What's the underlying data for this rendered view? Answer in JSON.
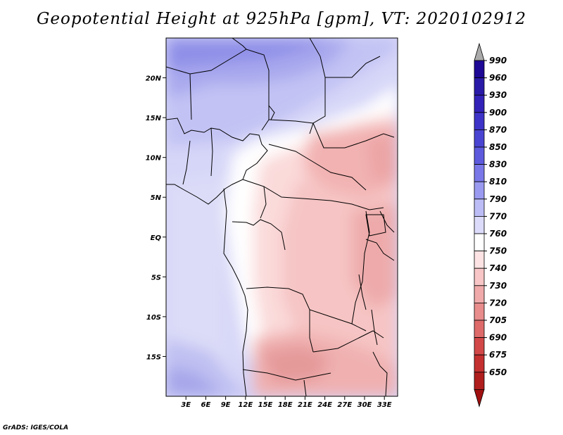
{
  "title": "Geopotential Height at 925hPa [gpm], VT: 2020102912",
  "footer": "GrADS: IGES/COLA",
  "map": {
    "projection": "lat-lon",
    "lon_range": [
      0,
      35
    ],
    "lat_range": [
      -20,
      25
    ],
    "lat_ticks": [
      {
        "value": 20,
        "label": "20N"
      },
      {
        "value": 15,
        "label": "15N"
      },
      {
        "value": 10,
        "label": "10N"
      },
      {
        "value": 5,
        "label": "5N"
      },
      {
        "value": 0,
        "label": "EQ"
      },
      {
        "value": -5,
        "label": "5S"
      },
      {
        "value": -10,
        "label": "10S"
      },
      {
        "value": -15,
        "label": "15S"
      }
    ],
    "lon_ticks": [
      {
        "value": 3,
        "label": "3E"
      },
      {
        "value": 6,
        "label": "6E"
      },
      {
        "value": 9,
        "label": "9E"
      },
      {
        "value": 12,
        "label": "12E"
      },
      {
        "value": 15,
        "label": "15E"
      },
      {
        "value": 18,
        "label": "18E"
      },
      {
        "value": 21,
        "label": "21E"
      },
      {
        "value": 24,
        "label": "24E"
      },
      {
        "value": 27,
        "label": "27E"
      },
      {
        "value": 30,
        "label": "30E"
      },
      {
        "value": 33,
        "label": "33E"
      }
    ]
  },
  "colorbar": {
    "levels": [
      {
        "label": "990",
        "color": "#1e0896"
      },
      {
        "label": "960",
        "color": "#2a1aa8"
      },
      {
        "label": "930",
        "color": "#3322b8"
      },
      {
        "label": "900",
        "color": "#3d33c8"
      },
      {
        "label": "870",
        "color": "#4a44d2"
      },
      {
        "label": "850",
        "color": "#5e5ade"
      },
      {
        "label": "830",
        "color": "#7a78e8"
      },
      {
        "label": "810",
        "color": "#9a9af0"
      },
      {
        "label": "790",
        "color": "#bcbcf6"
      },
      {
        "label": "770",
        "color": "#dcdcfa"
      },
      {
        "label": "760",
        "color": "#ffffff"
      },
      {
        "label": "750",
        "color": "#fde3e3"
      },
      {
        "label": "740",
        "color": "#f8c6c6"
      },
      {
        "label": "730",
        "color": "#f0aaaa"
      },
      {
        "label": "720",
        "color": "#e88c8c"
      },
      {
        "label": "705",
        "color": "#de6a6a"
      },
      {
        "label": "690",
        "color": "#d24848"
      },
      {
        "label": "675",
        "color": "#c43030"
      },
      {
        "label": "650",
        "color": "#b01e1e"
      }
    ],
    "top_arrow_color": "#aaaaaa",
    "bottom_arrow_color": "#a01010"
  }
}
